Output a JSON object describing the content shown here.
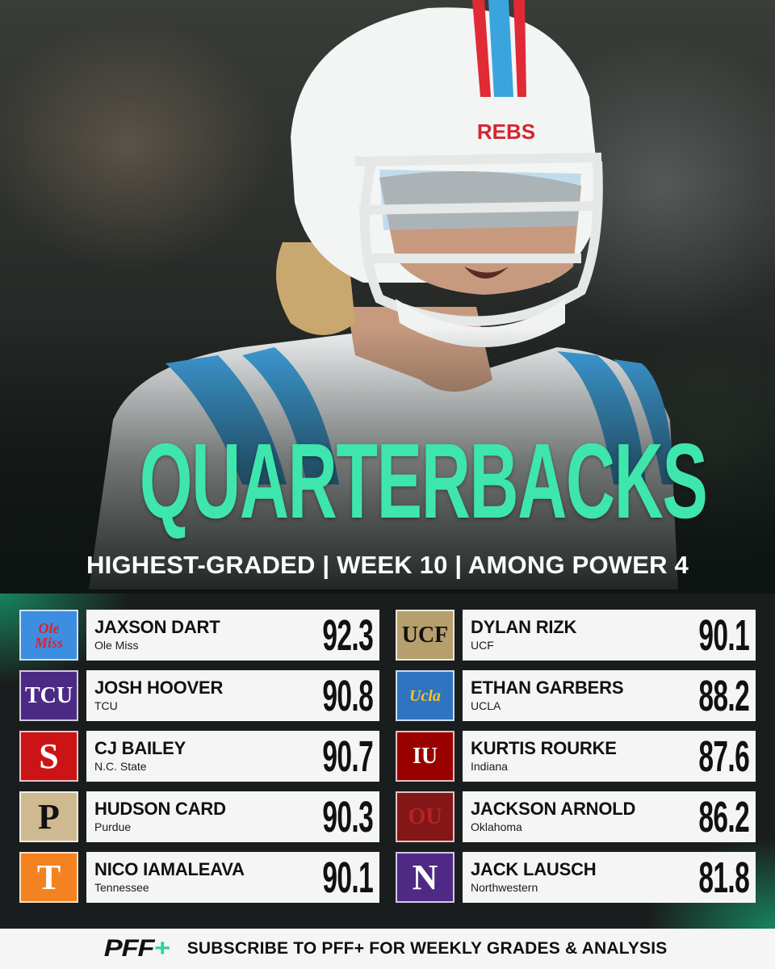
{
  "hero": {
    "title": "QUARTERBACKS",
    "subtitle": "HIGHEST-GRADED | WEEK 10 | AMONG POWER 4",
    "helmet_text": "REBS"
  },
  "colors": {
    "accent": "#3ee6ad",
    "card_bg": "#f4f5f4",
    "board_bg": "#1a1d1d"
  },
  "players_left": [
    {
      "name": "JAXSON DART",
      "team": "Ole Miss",
      "grade": "92.3",
      "logo_text": "Ole Miss",
      "logo_bg": "#3d8de0",
      "logo_fg": "#e2202a"
    },
    {
      "name": "JOSH HOOVER",
      "team": "TCU",
      "grade": "90.8",
      "logo_text": "TCU",
      "logo_bg": "#4b2a86",
      "logo_fg": "#ffffff"
    },
    {
      "name": "CJ BAILEY",
      "team": "N.C. State",
      "grade": "90.7",
      "logo_text": "S",
      "logo_bg": "#cc1417",
      "logo_fg": "#ffffff"
    },
    {
      "name": "HUDSON CARD",
      "team": "Purdue",
      "grade": "90.3",
      "logo_text": "P",
      "logo_bg": "#cfb991",
      "logo_fg": "#111111"
    },
    {
      "name": "NICO IAMALEAVA",
      "team": "Tennessee",
      "grade": "90.1",
      "logo_text": "T",
      "logo_bg": "#f58220",
      "logo_fg": "#ffffff"
    }
  ],
  "players_right": [
    {
      "name": "DYLAN RIZK",
      "team": "UCF",
      "grade": "90.1",
      "logo_text": "UCF",
      "logo_bg": "#b69f6d",
      "logo_fg": "#111111"
    },
    {
      "name": "ETHAN GARBERS",
      "team": "UCLA",
      "grade": "88.2",
      "logo_text": "Ucla",
      "logo_bg": "#2f74c0",
      "logo_fg": "#f2c230"
    },
    {
      "name": "KURTIS ROURKE",
      "team": "Indiana",
      "grade": "87.6",
      "logo_text": "IU",
      "logo_bg": "#990000",
      "logo_fg": "#ffffff"
    },
    {
      "name": "JACKSON ARNOLD",
      "team": "Oklahoma",
      "grade": "86.2",
      "logo_text": "OU",
      "logo_bg": "#841617",
      "logo_fg": "#b32326"
    },
    {
      "name": "JACK LAUSCH",
      "team": "Northwestern",
      "grade": "81.8",
      "logo_text": "N",
      "logo_bg": "#4e2a84",
      "logo_fg": "#ffffff"
    }
  ],
  "footer": {
    "brand": "PFF",
    "brand_plus": "+",
    "cta": "SUBSCRIBE TO PFF+ FOR WEEKLY GRADES & ANALYSIS"
  }
}
